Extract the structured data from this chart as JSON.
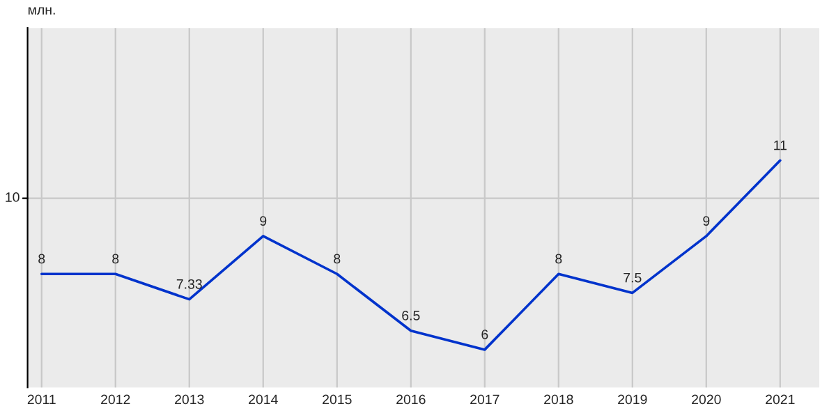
{
  "chart_data": {
    "type": "line",
    "ylabel": "млн.",
    "categories": [
      "2011",
      "2012",
      "2013",
      "2014",
      "2015",
      "2016",
      "2017",
      "2018",
      "2019",
      "2020",
      "2021"
    ],
    "series": [
      {
        "color": "#0033cc",
        "values": [
          8,
          8,
          7.33,
          9,
          8,
          6.5,
          6,
          8,
          7.5,
          9,
          11
        ]
      }
    ],
    "ylim": [
      5,
      14.5
    ],
    "ref_lines": [
      {
        "axis": "y",
        "value": 10,
        "label": "10",
        "color": "#c8c8c8"
      }
    ],
    "grid": "x",
    "data_labels": true,
    "marker": "none",
    "line_style": "solid",
    "legend": false
  }
}
